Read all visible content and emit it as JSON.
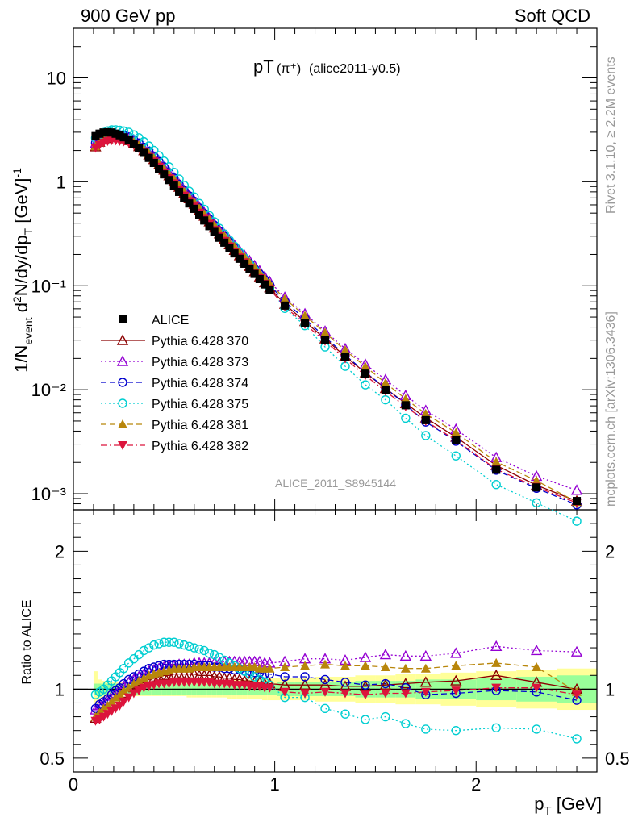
{
  "header": {
    "left": "900 GeV pp",
    "right": "Soft QCD"
  },
  "side_text": {
    "rivet": "Rivet 3.1.10, ≥ 2.2M events",
    "mcplots": "mcplots.cern.ch [arXiv:1306.3436]"
  },
  "chart_data": {
    "type": "scatter",
    "title": "pT(π⁺) (alice2011-y0.5)",
    "title_main": "pT",
    "title_paren": "(π⁺)",
    "title_tag": "(alice2011-y0.5)",
    "watermark": "ALICE_2011_S8945144",
    "xlabel": "p_T [GeV]",
    "ylabel_top": "1/N_event d²N/dy/dp_T [GeV]⁻¹",
    "ylabel_bottom": "Ratio to ALICE",
    "xlim": [
      0,
      2.6
    ],
    "ylim_top": [
      0.0007,
      30
    ],
    "ylim_bottom": [
      0.4,
      2.3
    ],
    "log_y_top": true,
    "x_ticks": [
      "0",
      "1",
      "2"
    ],
    "y_ticks_top": [
      "10⁻³",
      "10⁻²",
      "10⁻¹",
      "1",
      "10"
    ],
    "y_ticks_bottom": [
      "0.5",
      "1",
      "2"
    ],
    "legend_position": "middle-left",
    "x": [
      0.11,
      0.13,
      0.15,
      0.17,
      0.19,
      0.21,
      0.23,
      0.25,
      0.275,
      0.3,
      0.325,
      0.35,
      0.375,
      0.4,
      0.425,
      0.45,
      0.475,
      0.5,
      0.525,
      0.55,
      0.575,
      0.6,
      0.625,
      0.65,
      0.675,
      0.7,
      0.725,
      0.75,
      0.775,
      0.8,
      0.825,
      0.85,
      0.875,
      0.9,
      0.925,
      0.95,
      0.975,
      1.05,
      1.15,
      1.25,
      1.35,
      1.45,
      1.55,
      1.65,
      1.75,
      1.9,
      2.1,
      2.3,
      2.5
    ],
    "alice": [
      2.75,
      2.9,
      2.98,
      3.0,
      2.98,
      2.9,
      2.8,
      2.68,
      2.52,
      2.32,
      2.12,
      1.9,
      1.7,
      1.52,
      1.34,
      1.18,
      1.04,
      0.92,
      0.8,
      0.7,
      0.62,
      0.55,
      0.48,
      0.425,
      0.375,
      0.33,
      0.29,
      0.26,
      0.23,
      0.205,
      0.182,
      0.163,
      0.145,
      0.13,
      0.116,
      0.103,
      0.092,
      0.0645,
      0.044,
      0.03,
      0.0205,
      0.0143,
      0.01,
      0.0071,
      0.0051,
      0.0033,
      0.0017,
      0.00115,
      0.00085
    ],
    "alice_err_stat": [
      0.02,
      0.02,
      0.02,
      0.02,
      0.02,
      0.02,
      0.02,
      0.02,
      0.02,
      0.02,
      0.02,
      0.02,
      0.02,
      0.02,
      0.02,
      0.02,
      0.02,
      0.02,
      0.02,
      0.02,
      0.02,
      0.02,
      0.02,
      0.02,
      0.02,
      0.02,
      0.02,
      0.02,
      0.02,
      0.02,
      0.02,
      0.02,
      0.02,
      0.02,
      0.02,
      0.02,
      0.02,
      0.03,
      0.03,
      0.03,
      0.03,
      0.04,
      0.04,
      0.04,
      0.05,
      0.05,
      0.06,
      0.07,
      0.08
    ],
    "alice_err_total": [
      0.13,
      0.07,
      0.06,
      0.05,
      0.05,
      0.05,
      0.05,
      0.05,
      0.05,
      0.05,
      0.05,
      0.05,
      0.05,
      0.05,
      0.05,
      0.05,
      0.05,
      0.05,
      0.05,
      0.05,
      0.06,
      0.06,
      0.06,
      0.06,
      0.06,
      0.06,
      0.06,
      0.06,
      0.07,
      0.07,
      0.07,
      0.07,
      0.07,
      0.07,
      0.07,
      0.08,
      0.08,
      0.08,
      0.08,
      0.09,
      0.09,
      0.1,
      0.1,
      0.11,
      0.11,
      0.12,
      0.13,
      0.14,
      0.15
    ],
    "series": [
      {
        "name": "ALICE",
        "color": "#000000",
        "marker": "square-filled",
        "line": "none",
        "ratio": [
          1,
          1,
          1,
          1,
          1,
          1,
          1,
          1,
          1,
          1,
          1,
          1,
          1,
          1,
          1,
          1,
          1,
          1,
          1,
          1,
          1,
          1,
          1,
          1,
          1,
          1,
          1,
          1,
          1,
          1,
          1,
          1,
          1,
          1,
          1,
          1,
          1,
          1,
          1,
          1,
          1,
          1,
          1,
          1,
          1,
          1,
          1,
          1,
          1
        ]
      },
      {
        "name": "Pythia 6.428 370",
        "color": "#8b0000",
        "marker": "triangle-up-open",
        "line": "solid",
        "ratio": [
          0.79,
          0.83,
          0.85,
          0.87,
          0.9,
          0.93,
          0.95,
          0.97,
          0.99,
          1.01,
          1.03,
          1.05,
          1.07,
          1.08,
          1.09,
          1.1,
          1.1,
          1.11,
          1.11,
          1.11,
          1.11,
          1.11,
          1.1,
          1.1,
          1.1,
          1.09,
          1.09,
          1.08,
          1.08,
          1.07,
          1.07,
          1.06,
          1.06,
          1.05,
          1.05,
          1.04,
          1.04,
          1.03,
          1.03,
          1.03,
          1.02,
          1.02,
          1.03,
          1.04,
          1.05,
          1.06,
          1.1,
          1.05,
          1.0
        ]
      },
      {
        "name": "Pythia 6.428 373",
        "color": "#9400d3",
        "marker": "triangle-up-open",
        "line": "dotted",
        "ratio": [
          0.85,
          0.88,
          0.9,
          0.92,
          0.95,
          0.97,
          1.0,
          1.02,
          1.05,
          1.07,
          1.09,
          1.11,
          1.13,
          1.14,
          1.15,
          1.16,
          1.17,
          1.17,
          1.18,
          1.18,
          1.18,
          1.19,
          1.19,
          1.19,
          1.19,
          1.19,
          1.19,
          1.2,
          1.2,
          1.2,
          1.2,
          1.2,
          1.2,
          1.2,
          1.2,
          1.19,
          1.19,
          1.2,
          1.22,
          1.22,
          1.21,
          1.23,
          1.25,
          1.24,
          1.24,
          1.26,
          1.31,
          1.28,
          1.27
        ]
      },
      {
        "name": "Pythia 6.428 374",
        "color": "#0000cd",
        "marker": "circle-open",
        "line": "dashed",
        "ratio": [
          0.86,
          0.89,
          0.91,
          0.93,
          0.96,
          0.99,
          1.01,
          1.04,
          1.07,
          1.09,
          1.11,
          1.13,
          1.15,
          1.16,
          1.17,
          1.18,
          1.18,
          1.18,
          1.18,
          1.18,
          1.18,
          1.18,
          1.17,
          1.17,
          1.17,
          1.16,
          1.16,
          1.15,
          1.15,
          1.14,
          1.14,
          1.13,
          1.13,
          1.12,
          1.12,
          1.11,
          1.11,
          1.09,
          1.09,
          1.07,
          1.05,
          1.03,
          1.04,
          1.01,
          0.96,
          0.97,
          0.99,
          0.98,
          0.92
        ]
      },
      {
        "name": "Pythia 6.428 375",
        "color": "#00ced1",
        "marker": "circle-open",
        "line": "dotted",
        "ratio": [
          0.96,
          0.98,
          1.0,
          1.03,
          1.06,
          1.09,
          1.12,
          1.15,
          1.19,
          1.22,
          1.25,
          1.28,
          1.3,
          1.32,
          1.33,
          1.34,
          1.34,
          1.34,
          1.33,
          1.32,
          1.31,
          1.3,
          1.29,
          1.28,
          1.26,
          1.25,
          1.23,
          1.21,
          1.19,
          1.17,
          1.15,
          1.13,
          1.11,
          1.09,
          1.07,
          1.05,
          1.03,
          0.94,
          0.94,
          0.86,
          0.82,
          0.78,
          0.8,
          0.75,
          0.71,
          0.7,
          0.72,
          0.71,
          0.64
        ]
      },
      {
        "name": "Pythia 6.428 381",
        "color": "#b8860b",
        "marker": "triangle-up-filled",
        "line": "dashed",
        "ratio": [
          0.8,
          0.83,
          0.86,
          0.88,
          0.91,
          0.94,
          0.96,
          0.99,
          1.01,
          1.04,
          1.06,
          1.08,
          1.1,
          1.11,
          1.12,
          1.13,
          1.14,
          1.15,
          1.15,
          1.15,
          1.15,
          1.16,
          1.16,
          1.16,
          1.16,
          1.16,
          1.16,
          1.16,
          1.16,
          1.16,
          1.16,
          1.16,
          1.16,
          1.16,
          1.15,
          1.15,
          1.15,
          1.16,
          1.17,
          1.18,
          1.17,
          1.17,
          1.16,
          1.15,
          1.15,
          1.17,
          1.19,
          1.16,
          0.98
        ]
      },
      {
        "name": "Pythia 6.428 382",
        "color": "#dc143c",
        "marker": "triangle-down-filled",
        "line": "dashdot",
        "ratio": [
          0.77,
          0.78,
          0.8,
          0.82,
          0.84,
          0.86,
          0.88,
          0.91,
          0.94,
          0.97,
          0.99,
          1.01,
          1.02,
          1.03,
          1.04,
          1.04,
          1.04,
          1.05,
          1.05,
          1.05,
          1.05,
          1.05,
          1.05,
          1.05,
          1.05,
          1.04,
          1.04,
          1.04,
          1.04,
          1.03,
          1.03,
          1.03,
          1.02,
          1.02,
          1.02,
          1.01,
          1.01,
          0.98,
          0.97,
          0.98,
          0.97,
          0.96,
          0.97,
          0.97,
          0.98,
          0.99,
          1.01,
          1.01,
          0.96
        ]
      }
    ]
  }
}
